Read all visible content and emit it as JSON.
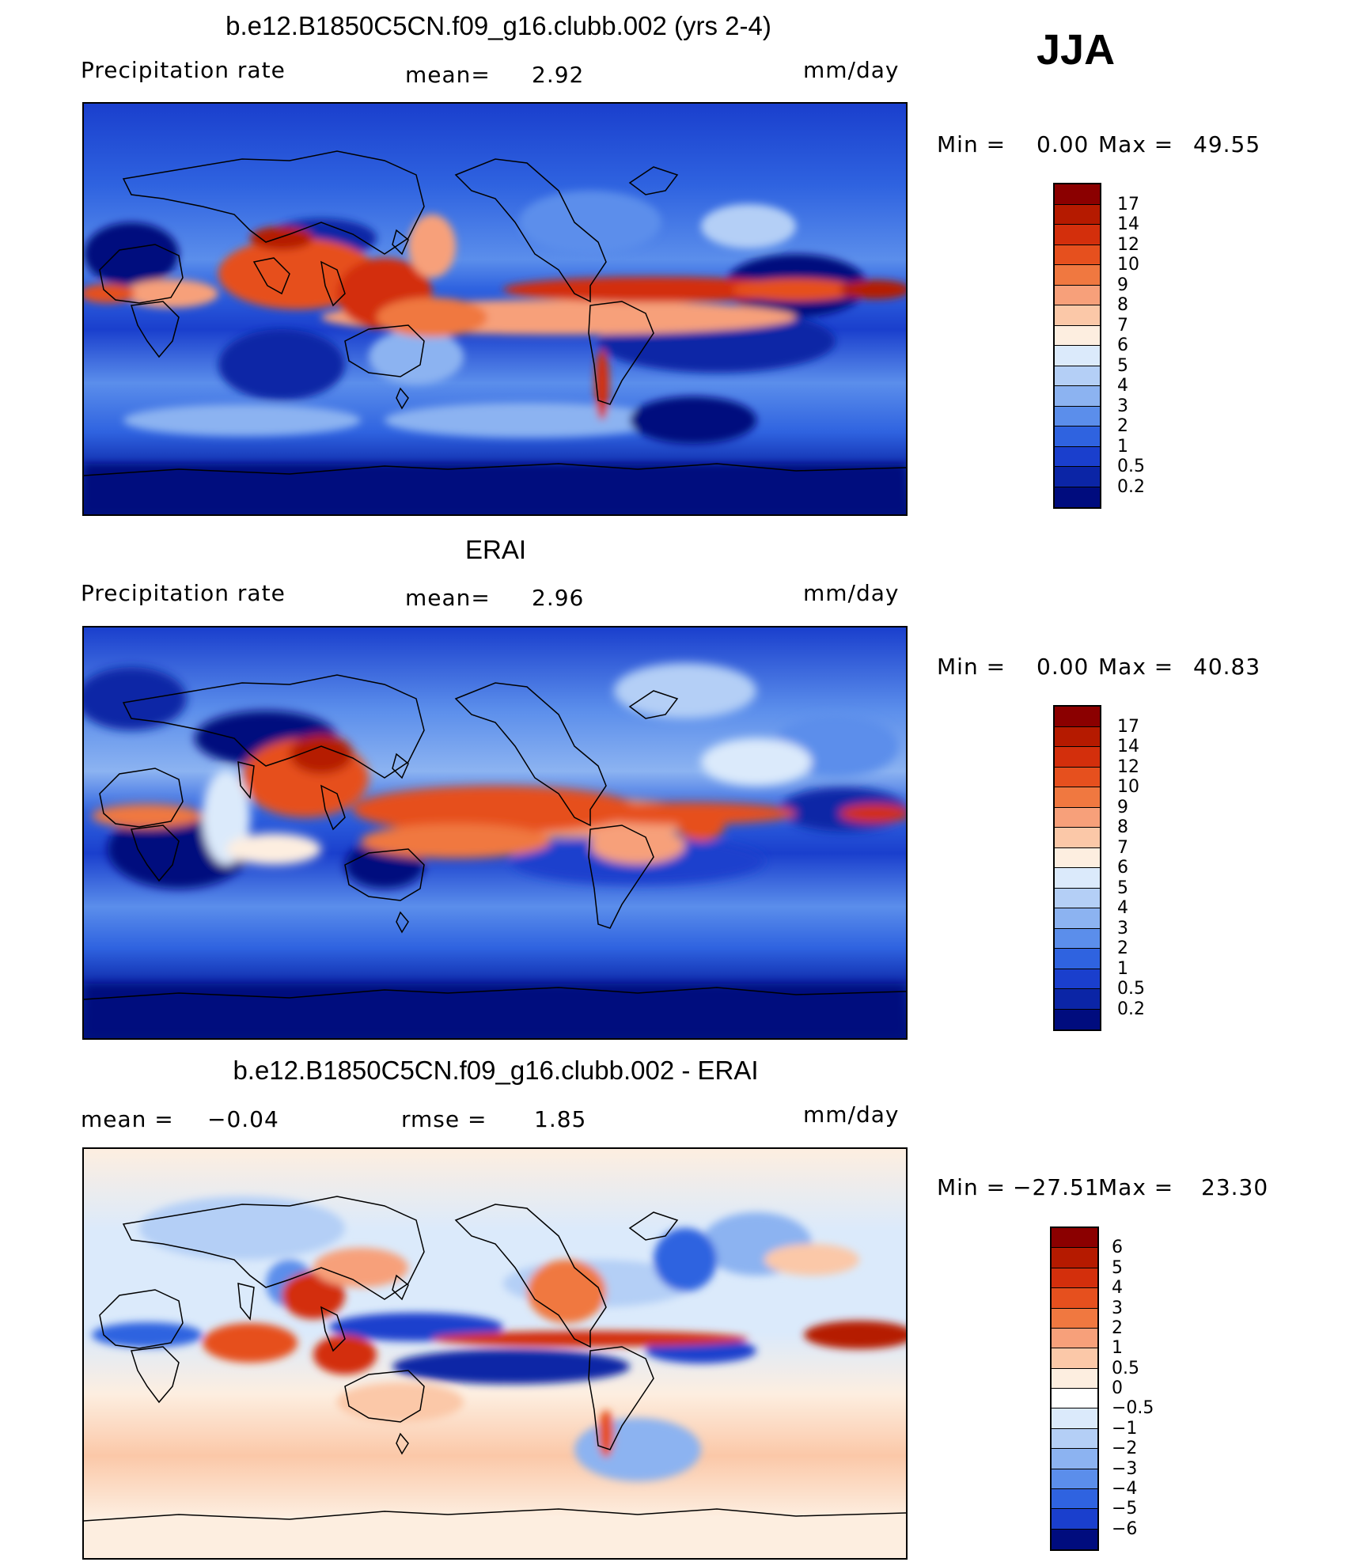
{
  "season": "JJA",
  "chart_data": [
    {
      "type": "heatmap",
      "title": "b.e12.B1850C5CN.f09_g16.clubb.002 (yrs 2-4)",
      "left_label": "Precipitation  rate",
      "center_label": "mean=",
      "center_value": "2.92",
      "right_label": "mm/day",
      "min_label": "Min  =",
      "min_value": "0.00",
      "max_label": "Max  =",
      "max_value": "49.55",
      "colorbar_ticks": [
        "17",
        "14",
        "12",
        "10",
        "9",
        "8",
        "7",
        "6",
        "5",
        "4",
        "3",
        "2",
        "1",
        "0.5",
        "0.2"
      ],
      "colors": [
        "#8b0000",
        "#b51a00",
        "#d32f0c",
        "#e6501e",
        "#f07840",
        "#f7a07a",
        "#fbc8a8",
        "#fdeee0",
        "#dbeafb",
        "#b4cff6",
        "#8cb3f1",
        "#5b8eeb",
        "#2f63e0",
        "#1a3fcd",
        "#0b25a6",
        "#000c7e"
      ]
    },
    {
      "type": "heatmap",
      "title": "ERAI",
      "left_label": "Precipitation  rate",
      "center_label": "mean=",
      "center_value": "2.96",
      "right_label": "mm/day",
      "min_label": "Min  =",
      "min_value": "0.00",
      "max_label": "Max  =",
      "max_value": "40.83",
      "colorbar_ticks": [
        "17",
        "14",
        "12",
        "10",
        "9",
        "8",
        "7",
        "6",
        "5",
        "4",
        "3",
        "2",
        "1",
        "0.5",
        "0.2"
      ],
      "colors": [
        "#8b0000",
        "#b51a00",
        "#d32f0c",
        "#e6501e",
        "#f07840",
        "#f7a07a",
        "#fbc8a8",
        "#fdeee0",
        "#dbeafb",
        "#b4cff6",
        "#8cb3f1",
        "#5b8eeb",
        "#2f63e0",
        "#1a3fcd",
        "#0b25a6",
        "#000c7e"
      ]
    },
    {
      "type": "heatmap",
      "title": "b.e12.B1850C5CN.f09_g16.clubb.002 - ERAI",
      "left_label": "mean  =",
      "left_value": "−0.04",
      "center_label": "rmse  =",
      "center_value": "1.85",
      "right_label": "mm/day",
      "min_label": "Min  =",
      "min_value": "−27.51",
      "max_label": "Max  =",
      "max_value": "23.30",
      "colorbar_ticks": [
        "6",
        "5",
        "4",
        "3",
        "2",
        "1",
        "0.5",
        "0",
        "−0.5",
        "−1",
        "−2",
        "−3",
        "−4",
        "−5",
        "−6"
      ],
      "colors": [
        "#8b0000",
        "#b51a00",
        "#d32f0c",
        "#e6501e",
        "#f07840",
        "#f7a07a",
        "#fbc8a8",
        "#fdeee0",
        "#ffffff",
        "#dbeafb",
        "#b4cff6",
        "#8cb3f1",
        "#5b8eeb",
        "#2f63e0",
        "#1a3fcd",
        "#000c7e"
      ]
    }
  ]
}
